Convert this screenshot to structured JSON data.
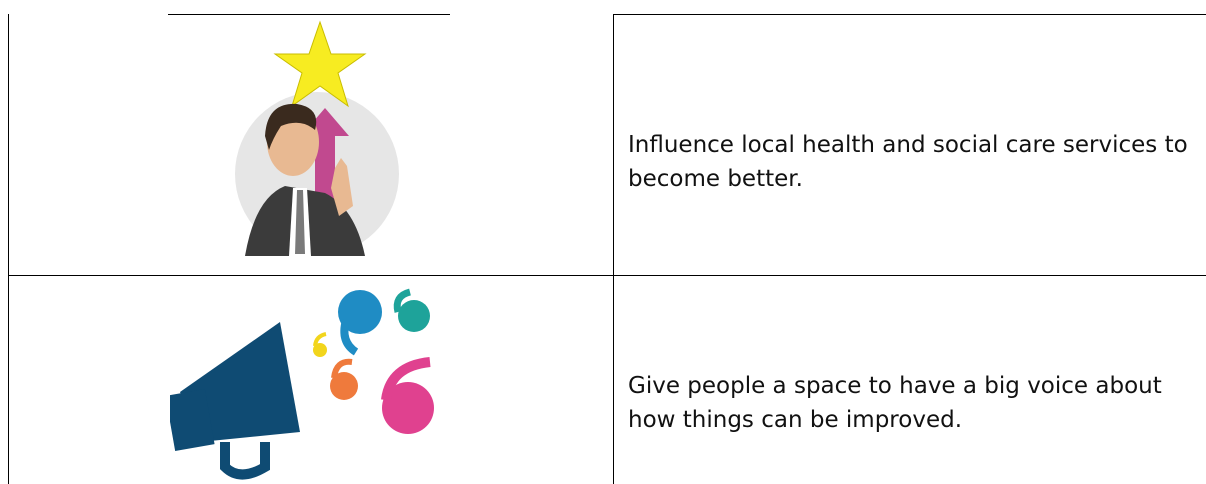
{
  "rows": [
    {
      "text": "Influence local health and social care services to become better."
    },
    {
      "text": "Give people a space to have a big voice about how things can be improved."
    }
  ]
}
